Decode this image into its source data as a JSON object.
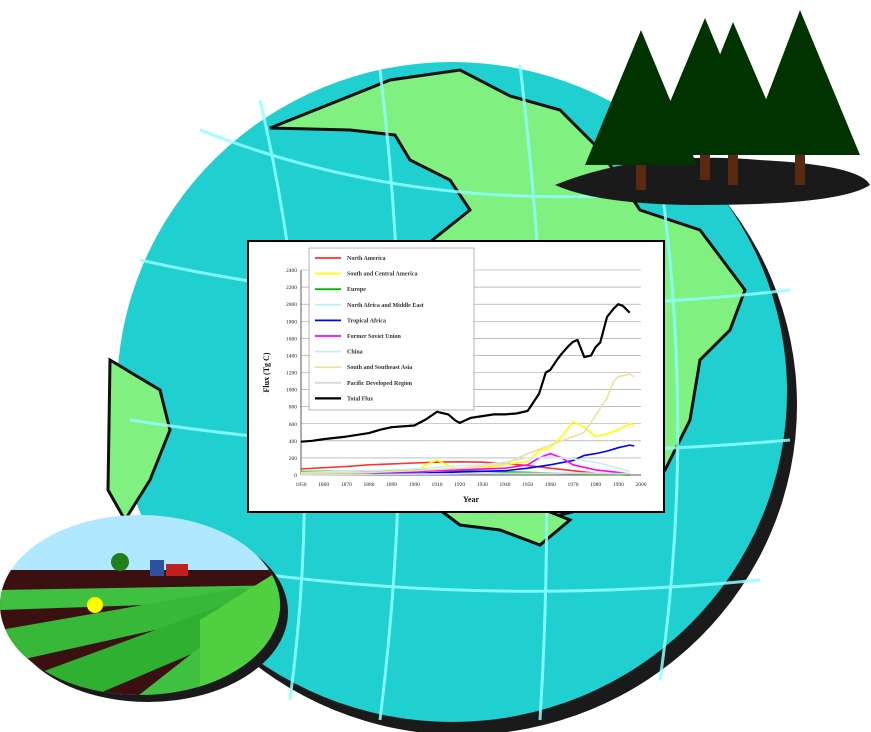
{
  "chart_data": {
    "type": "line",
    "xlabel": "Year",
    "ylabel": "Flux (Tg C)",
    "xlim": [
      1850,
      2000
    ],
    "ylim": [
      0,
      2400
    ],
    "x_ticks": [
      1850,
      1860,
      1870,
      1880,
      1890,
      1900,
      1910,
      1920,
      1930,
      1940,
      1950,
      1960,
      1970,
      1980,
      1990,
      2000
    ],
    "y_ticks": [
      0,
      200,
      400,
      600,
      800,
      1000,
      1200,
      1400,
      1600,
      1800,
      2000,
      2200,
      2400
    ],
    "grid": "horizontal",
    "legend_position": "top-left",
    "series": [
      {
        "name": "North America",
        "color": "#ff3030",
        "points": [
          [
            1850,
            70
          ],
          [
            1860,
            85
          ],
          [
            1870,
            100
          ],
          [
            1880,
            120
          ],
          [
            1890,
            130
          ],
          [
            1900,
            140
          ],
          [
            1910,
            150
          ],
          [
            1920,
            155
          ],
          [
            1930,
            150
          ],
          [
            1940,
            135
          ],
          [
            1950,
            110
          ],
          [
            1960,
            80
          ],
          [
            1970,
            50
          ],
          [
            1980,
            20
          ],
          [
            1990,
            5
          ],
          [
            1995,
            0
          ]
        ]
      },
      {
        "name": "South and Central America",
        "color": "#ffff00",
        "points": [
          [
            1850,
            10
          ],
          [
            1870,
            15
          ],
          [
            1890,
            20
          ],
          [
            1900,
            30
          ],
          [
            1905,
            120
          ],
          [
            1910,
            175
          ],
          [
            1915,
            110
          ],
          [
            1920,
            60
          ],
          [
            1930,
            80
          ],
          [
            1940,
            120
          ],
          [
            1950,
            160
          ],
          [
            1955,
            280
          ],
          [
            1960,
            320
          ],
          [
            1965,
            450
          ],
          [
            1970,
            620
          ],
          [
            1975,
            560
          ],
          [
            1980,
            450
          ],
          [
            1985,
            480
          ],
          [
            1990,
            530
          ],
          [
            1995,
            600
          ],
          [
            1997,
            570
          ]
        ]
      },
      {
        "name": "Europe",
        "color": "#00c000",
        "points": [
          [
            1850,
            40
          ],
          [
            1870,
            45
          ],
          [
            1890,
            50
          ],
          [
            1900,
            60
          ],
          [
            1910,
            55
          ],
          [
            1930,
            45
          ],
          [
            1950,
            30
          ],
          [
            1970,
            15
          ],
          [
            1990,
            5
          ],
          [
            1995,
            0
          ]
        ]
      },
      {
        "name": "North Africa and Middle East",
        "color": "#c0f0ff",
        "points": [
          [
            1850,
            5
          ],
          [
            1900,
            10
          ],
          [
            1950,
            20
          ],
          [
            1970,
            25
          ],
          [
            1995,
            15
          ]
        ]
      },
      {
        "name": "Tropical Africa",
        "color": "#0000ff",
        "points": [
          [
            1850,
            10
          ],
          [
            1900,
            20
          ],
          [
            1940,
            50
          ],
          [
            1950,
            80
          ],
          [
            1960,
            120
          ],
          [
            1970,
            170
          ],
          [
            1975,
            230
          ],
          [
            1980,
            250
          ],
          [
            1985,
            280
          ],
          [
            1990,
            320
          ],
          [
            1995,
            350
          ],
          [
            1997,
            340
          ]
        ]
      },
      {
        "name": "Former Soviet Union",
        "color": "#ff00ff",
        "points": [
          [
            1850,
            20
          ],
          [
            1900,
            40
          ],
          [
            1920,
            60
          ],
          [
            1940,
            80
          ],
          [
            1950,
            120
          ],
          [
            1955,
            200
          ],
          [
            1960,
            250
          ],
          [
            1965,
            200
          ],
          [
            1970,
            120
          ],
          [
            1980,
            60
          ],
          [
            1990,
            30
          ],
          [
            1995,
            10
          ]
        ]
      },
      {
        "name": "China",
        "color": "#c8f0f0",
        "points": [
          [
            1850,
            30
          ],
          [
            1880,
            50
          ],
          [
            1900,
            70
          ],
          [
            1920,
            110
          ],
          [
            1930,
            120
          ],
          [
            1940,
            150
          ],
          [
            1950,
            200
          ],
          [
            1960,
            210
          ],
          [
            1970,
            190
          ],
          [
            1980,
            150
          ],
          [
            1990,
            80
          ],
          [
            1995,
            40
          ]
        ]
      },
      {
        "name": "South and Southeast Asia",
        "color": "#f0e0a0",
        "points": [
          [
            1850,
            20
          ],
          [
            1880,
            30
          ],
          [
            1900,
            50
          ],
          [
            1920,
            80
          ],
          [
            1940,
            130
          ],
          [
            1950,
            250
          ],
          [
            1960,
            350
          ],
          [
            1970,
            450
          ],
          [
            1975,
            500
          ],
          [
            1980,
            700
          ],
          [
            1985,
            900
          ],
          [
            1988,
            1100
          ],
          [
            1990,
            1150
          ],
          [
            1995,
            1180
          ],
          [
            1997,
            1150
          ]
        ]
      },
      {
        "name": "Pacific Developed Region",
        "color": "#d8d8d8",
        "points": [
          [
            1850,
            5
          ],
          [
            1900,
            10
          ],
          [
            1950,
            20
          ],
          [
            1995,
            15
          ]
        ]
      },
      {
        "name": "Total Flux",
        "color": "#000000",
        "points": [
          [
            1850,
            390
          ],
          [
            1855,
            400
          ],
          [
            1860,
            420
          ],
          [
            1870,
            450
          ],
          [
            1880,
            490
          ],
          [
            1885,
            530
          ],
          [
            1890,
            560
          ],
          [
            1900,
            580
          ],
          [
            1905,
            650
          ],
          [
            1910,
            740
          ],
          [
            1915,
            710
          ],
          [
            1918,
            640
          ],
          [
            1920,
            610
          ],
          [
            1925,
            670
          ],
          [
            1930,
            690
          ],
          [
            1935,
            710
          ],
          [
            1940,
            710
          ],
          [
            1945,
            720
          ],
          [
            1950,
            750
          ],
          [
            1955,
            950
          ],
          [
            1958,
            1200
          ],
          [
            1960,
            1230
          ],
          [
            1963,
            1350
          ],
          [
            1965,
            1420
          ],
          [
            1968,
            1510
          ],
          [
            1970,
            1560
          ],
          [
            1972,
            1580
          ],
          [
            1975,
            1380
          ],
          [
            1978,
            1400
          ],
          [
            1980,
            1500
          ],
          [
            1982,
            1550
          ],
          [
            1985,
            1850
          ],
          [
            1988,
            1950
          ],
          [
            1990,
            2000
          ],
          [
            1992,
            1980
          ],
          [
            1995,
            1900
          ]
        ]
      }
    ]
  },
  "colors": {
    "ocean": "#20d0d0",
    "land": "#80f080",
    "grid_lines": "#90ffff",
    "tree": "#003300",
    "shadow": "#1a1a1a"
  },
  "decorations": {
    "globe_icon": "globe-with-gridlines",
    "trees_icon": "pine-trees",
    "farm_icon": "farm-field"
  }
}
